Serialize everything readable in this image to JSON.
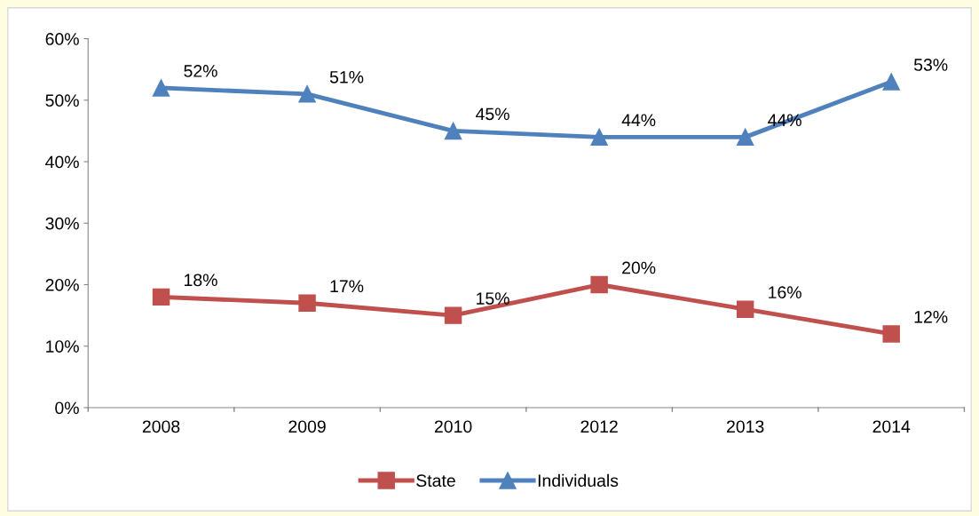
{
  "chart_data": {
    "type": "line",
    "categories": [
      "2008",
      "2009",
      "2010",
      "2012",
      "2013",
      "2014"
    ],
    "series": [
      {
        "name": "State",
        "color": "#c0504d",
        "marker": "square",
        "values": [
          18,
          17,
          15,
          20,
          16,
          12
        ],
        "value_labels": [
          "18%",
          "17%",
          "15%",
          "20%",
          "16%",
          "12%"
        ]
      },
      {
        "name": "Individuals",
        "color": "#4f81bd",
        "marker": "triangle",
        "values": [
          52,
          51,
          45,
          44,
          44,
          53
        ],
        "value_labels": [
          "52%",
          "51%",
          "45%",
          "44%",
          "44%",
          "53%"
        ]
      }
    ],
    "ylim": [
      0,
      60
    ],
    "yticks": [
      {
        "value": 0,
        "label": "0%"
      },
      {
        "value": 10,
        "label": "10%"
      },
      {
        "value": 20,
        "label": "20%"
      },
      {
        "value": 30,
        "label": "30%"
      },
      {
        "value": 40,
        "label": "40%"
      },
      {
        "value": 50,
        "label": "50%"
      },
      {
        "value": 60,
        "label": "60%"
      }
    ],
    "grid": false,
    "legend": "bottom",
    "line_style": "solid"
  }
}
